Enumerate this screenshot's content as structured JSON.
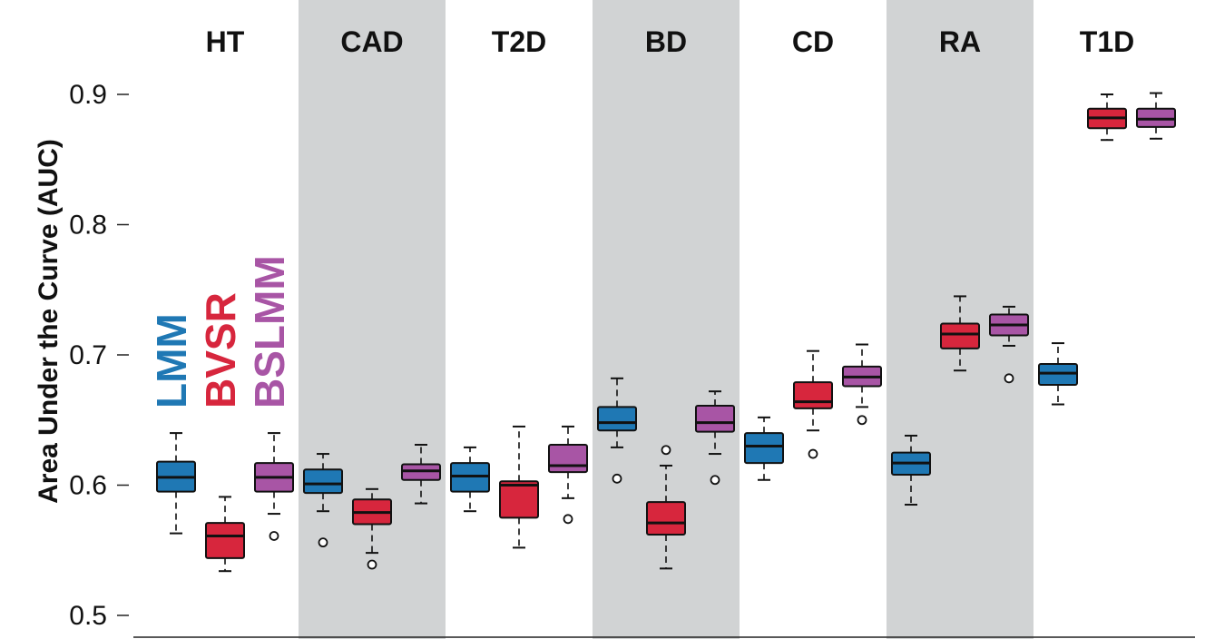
{
  "chart_data": {
    "type": "boxplot",
    "ylabel": "Area Under the Curve (AUC)",
    "ylim": [
      0.48,
      0.97
    ],
    "yticks": [
      "0.5",
      "0.6",
      "0.7",
      "0.8",
      "0.9"
    ],
    "shaded_groups": [
      "CAD",
      "BD",
      "RA"
    ],
    "categories": [
      "HT",
      "CAD",
      "T2D",
      "BD",
      "CD",
      "RA",
      "T1D"
    ],
    "legend_placement": "inside-left",
    "series": [
      {
        "name": "LMM",
        "color": "#1f78b4",
        "boxes": [
          {
            "group": "HT",
            "min": 0.563,
            "q1": 0.595,
            "median": 0.606,
            "q3": 0.618,
            "max": 0.64,
            "outliers": []
          },
          {
            "group": "CAD",
            "min": 0.58,
            "q1": 0.594,
            "median": 0.601,
            "q3": 0.612,
            "max": 0.624,
            "outliers": [
              0.556
            ]
          },
          {
            "group": "T2D",
            "min": 0.58,
            "q1": 0.595,
            "median": 0.607,
            "q3": 0.617,
            "max": 0.629,
            "outliers": []
          },
          {
            "group": "BD",
            "min": 0.629,
            "q1": 0.642,
            "median": 0.648,
            "q3": 0.66,
            "max": 0.682,
            "outliers": [
              0.605
            ]
          },
          {
            "group": "CD",
            "min": 0.604,
            "q1": 0.617,
            "median": 0.63,
            "q3": 0.64,
            "max": 0.652,
            "outliers": []
          },
          {
            "group": "RA",
            "min": 0.585,
            "q1": 0.608,
            "median": 0.617,
            "q3": 0.625,
            "max": 0.638,
            "outliers": []
          },
          {
            "group": "T1D",
            "min": 0.662,
            "q1": 0.677,
            "median": 0.686,
            "q3": 0.693,
            "max": 0.709,
            "outliers": []
          }
        ]
      },
      {
        "name": "BVSR",
        "color": "#d7263d",
        "boxes": [
          {
            "group": "HT",
            "min": 0.534,
            "q1": 0.544,
            "median": 0.561,
            "q3": 0.571,
            "max": 0.591,
            "outliers": []
          },
          {
            "group": "CAD",
            "min": 0.548,
            "q1": 0.57,
            "median": 0.579,
            "q3": 0.589,
            "max": 0.597,
            "outliers": [
              0.539
            ]
          },
          {
            "group": "T2D",
            "min": 0.552,
            "q1": 0.575,
            "median": 0.6,
            "q3": 0.603,
            "max": 0.645,
            "outliers": []
          },
          {
            "group": "BD",
            "min": 0.536,
            "q1": 0.562,
            "median": 0.571,
            "q3": 0.587,
            "max": 0.615,
            "outliers": [
              0.627
            ]
          },
          {
            "group": "CD",
            "min": 0.642,
            "q1": 0.659,
            "median": 0.664,
            "q3": 0.679,
            "max": 0.703,
            "outliers": [
              0.624
            ]
          },
          {
            "group": "RA",
            "min": 0.688,
            "q1": 0.705,
            "median": 0.716,
            "q3": 0.724,
            "max": 0.745,
            "outliers": []
          },
          {
            "group": "T1D",
            "min": 0.865,
            "q1": 0.874,
            "median": 0.882,
            "q3": 0.889,
            "max": 0.9,
            "outliers": []
          }
        ]
      },
      {
        "name": "BSLMM",
        "color": "#a855a5",
        "boxes": [
          {
            "group": "HT",
            "min": 0.578,
            "q1": 0.595,
            "median": 0.606,
            "q3": 0.617,
            "max": 0.64,
            "outliers": [
              0.561
            ]
          },
          {
            "group": "CAD",
            "min": 0.586,
            "q1": 0.604,
            "median": 0.611,
            "q3": 0.616,
            "max": 0.631,
            "outliers": []
          },
          {
            "group": "T2D",
            "min": 0.59,
            "q1": 0.61,
            "median": 0.615,
            "q3": 0.631,
            "max": 0.645,
            "outliers": [
              0.574
            ]
          },
          {
            "group": "BD",
            "min": 0.624,
            "q1": 0.641,
            "median": 0.648,
            "q3": 0.661,
            "max": 0.672,
            "outliers": [
              0.604
            ]
          },
          {
            "group": "CD",
            "min": 0.66,
            "q1": 0.676,
            "median": 0.683,
            "q3": 0.691,
            "max": 0.708,
            "outliers": [
              0.65
            ]
          },
          {
            "group": "RA",
            "min": 0.707,
            "q1": 0.715,
            "median": 0.723,
            "q3": 0.731,
            "max": 0.737,
            "outliers": [
              0.682
            ]
          },
          {
            "group": "T1D",
            "min": 0.866,
            "q1": 0.875,
            "median": 0.881,
            "q3": 0.889,
            "max": 0.901,
            "outliers": []
          }
        ]
      }
    ]
  }
}
